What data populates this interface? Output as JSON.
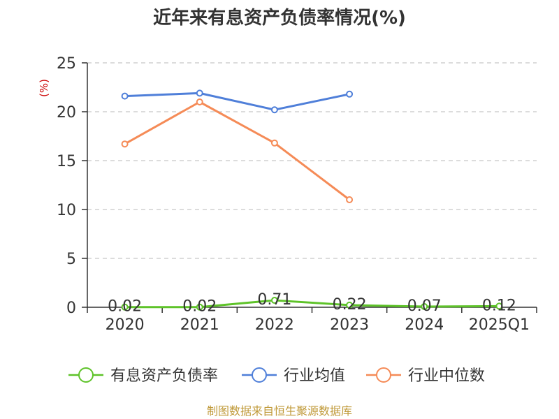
{
  "chart_data": {
    "type": "line",
    "title": "近年来有息资产负债率情况(%)",
    "ylabel": "(%)",
    "xlabel": "",
    "categories": [
      "2020",
      "2021",
      "2022",
      "2023",
      "2024",
      "2025Q1"
    ],
    "ylim": [
      0,
      25
    ],
    "yticks": [
      0,
      5,
      10,
      15,
      20,
      25
    ],
    "grid": true,
    "legend": "bottom",
    "series": [
      {
        "name": "有息资产负债率",
        "color": "#5ec329",
        "values": [
          0.02,
          0.02,
          0.71,
          0.22,
          0.07,
          0.12
        ],
        "labels": [
          "0.02",
          "0.02",
          "0.71",
          "0.22",
          "0.07",
          "0.12"
        ]
      },
      {
        "name": "行业均值",
        "color": "#4f7fd9",
        "values": [
          21.6,
          21.9,
          20.2,
          21.8,
          null,
          null
        ]
      },
      {
        "name": "行业中位数",
        "color": "#f58b57",
        "values": [
          16.7,
          21.0,
          16.8,
          11.0,
          null,
          null
        ]
      }
    ]
  },
  "source": "制图数据来自恒生聚源数据库"
}
